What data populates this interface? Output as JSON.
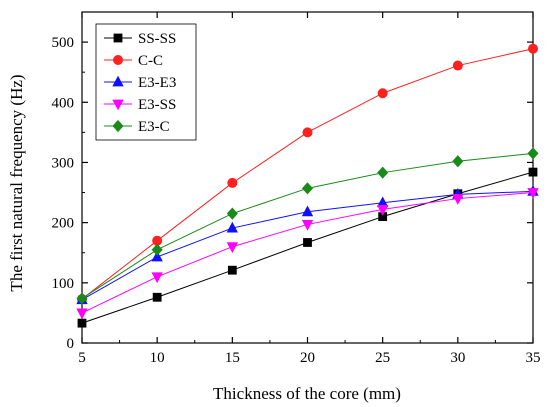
{
  "chart_data": {
    "type": "line",
    "title": "",
    "xlabel": "Thickness of the core (mm)",
    "ylabel": "The first natural frequency (Hz)",
    "x": [
      5,
      10,
      15,
      20,
      25,
      30,
      35
    ],
    "xlim": [
      5,
      35
    ],
    "ylim": [
      0,
      550
    ],
    "xticks": [
      5,
      10,
      15,
      20,
      25,
      30,
      35
    ],
    "yticks": [
      0,
      100,
      200,
      300,
      400,
      500
    ],
    "grid": false,
    "legend_position": "top-left",
    "series": [
      {
        "name": "SS-SS",
        "color": "#000000",
        "marker": "square",
        "values": [
          33,
          76,
          121,
          167,
          210,
          248,
          284
        ]
      },
      {
        "name": "C-C",
        "color": "#ff2020",
        "marker": "circle",
        "values": [
          73,
          170,
          266,
          350,
          415,
          461,
          489
        ]
      },
      {
        "name": "E3-E3",
        "color": "#1010ff",
        "marker": "triangle-up",
        "values": [
          72,
          143,
          191,
          218,
          233,
          247,
          252
        ]
      },
      {
        "name": "E3-SS",
        "color": "#ff00ff",
        "marker": "triangle-down",
        "values": [
          50,
          110,
          160,
          197,
          222,
          240,
          250
        ]
      },
      {
        "name": "E3-C",
        "color": "#1a8a1a",
        "marker": "diamond",
        "values": [
          74,
          155,
          215,
          257,
          283,
          302,
          315
        ]
      }
    ]
  }
}
